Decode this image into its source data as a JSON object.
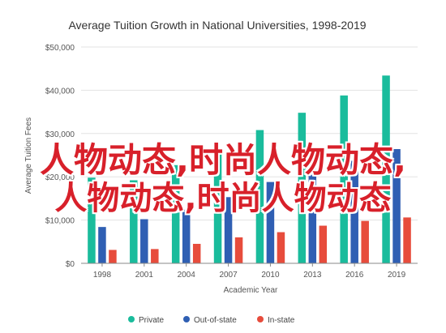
{
  "chart_data": {
    "type": "bar",
    "title": "Average Tuition Growth in National Universities, 1998-2019",
    "xlabel": "Academic Year",
    "ylabel": "Average Tuition Fees",
    "categories": [
      "1998",
      "2001",
      "2004",
      "2007",
      "2010",
      "2013",
      "2016",
      "2019"
    ],
    "series": [
      {
        "name": "Private",
        "color": "#1abc9c",
        "values": [
          19800,
          19200,
          22700,
          26100,
          30800,
          34800,
          38800,
          43400
        ]
      },
      {
        "name": "Out-of-state",
        "color": "#2f5fb3",
        "values": [
          8400,
          10200,
          12400,
          15300,
          18800,
          21800,
          23700,
          26400
        ]
      },
      {
        "name": "In-state",
        "color": "#e74c3c",
        "values": [
          3100,
          3300,
          4500,
          6000,
          7200,
          8700,
          9800,
          10600
        ]
      }
    ],
    "yticks": [
      "$0",
      "$10,000",
      "$20,000",
      "$30,000",
      "$40,000",
      "$50,000"
    ],
    "ylim": [
      0,
      50000
    ],
    "grid": true,
    "legend_position": "bottom"
  },
  "overlay": {
    "line1": "人物动态,时尚人物动态,",
    "line2": "人物动态,时尚人物动态"
  }
}
